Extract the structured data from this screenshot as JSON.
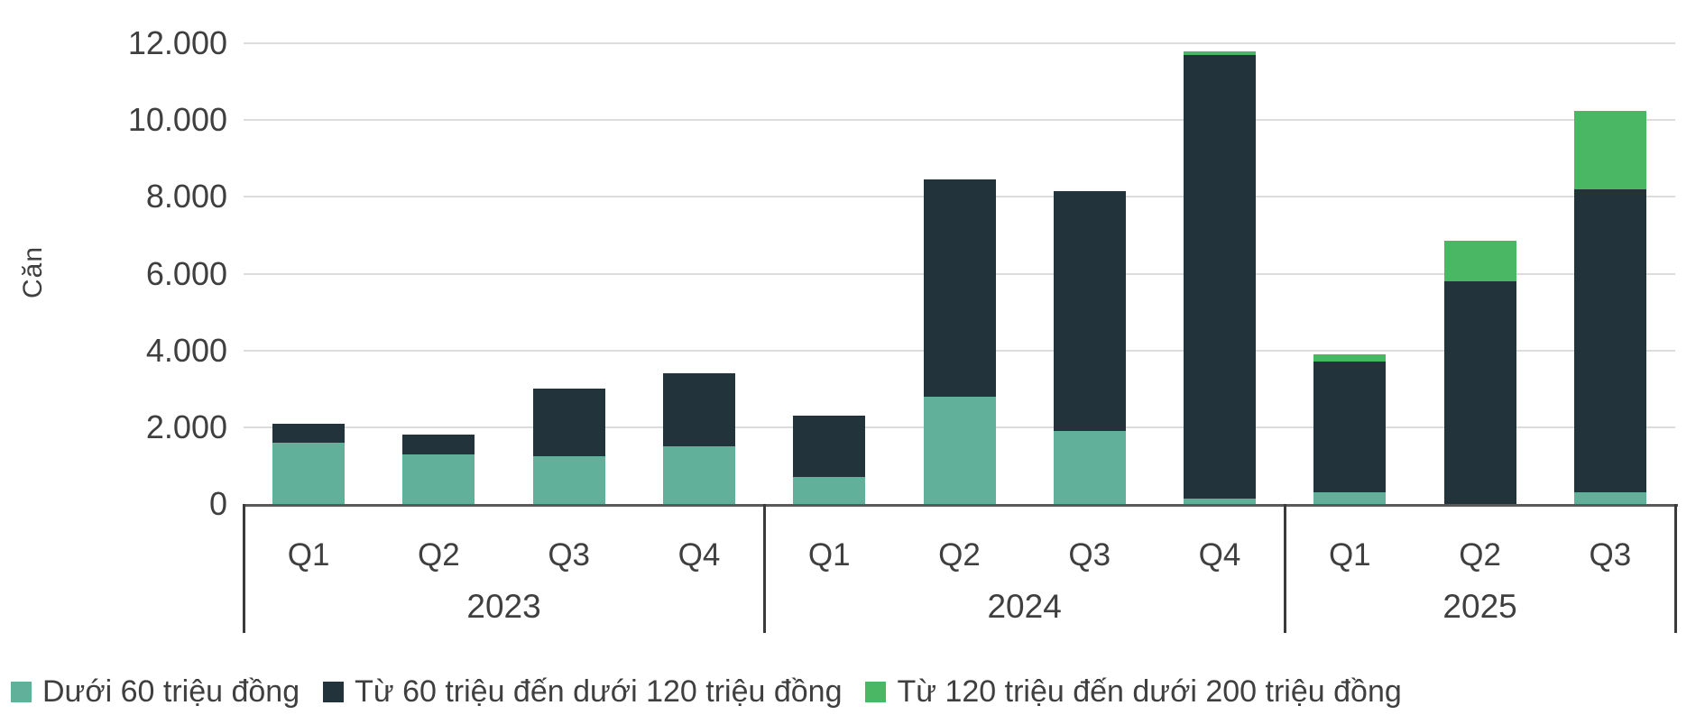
{
  "chart_data": {
    "type": "bar",
    "stacked": true,
    "title": "",
    "y_axis": {
      "title": "Căn",
      "min": 0,
      "max": 12000,
      "tick_step": 2000,
      "tick_labels": [
        "0",
        "2.000",
        "4.000",
        "6.000",
        "8.000",
        "10.000",
        "12.000"
      ]
    },
    "x_axis": {
      "groups": [
        {
          "label": "2023",
          "quarters": [
            "Q1",
            "Q2",
            "Q3",
            "Q4"
          ]
        },
        {
          "label": "2024",
          "quarters": [
            "Q1",
            "Q2",
            "Q3",
            "Q4"
          ]
        },
        {
          "label": "2025",
          "quarters": [
            "Q1",
            "Q2",
            "Q3"
          ]
        }
      ]
    },
    "series": [
      {
        "name": "Dưới 60 triệu đồng",
        "color": "#60b09a",
        "values": [
          1600,
          1300,
          1250,
          1500,
          700,
          2800,
          1900,
          150,
          300,
          0,
          300
        ]
      },
      {
        "name": "Từ 60 triệu đến dưới 120 triệu đồng",
        "color": "#23333b",
        "values": [
          500,
          500,
          1750,
          1900,
          1600,
          5650,
          6250,
          11550,
          3400,
          5800,
          7900
        ]
      },
      {
        "name": "Từ 120 triệu đến dưới 200 triệu đồng",
        "color": "#4ab764",
        "values": [
          0,
          0,
          0,
          0,
          0,
          0,
          0,
          100,
          200,
          1050,
          2050
        ]
      }
    ],
    "grid": true,
    "legend_position": "bottom"
  },
  "colors": {
    "grid_line": "#dcdcdc",
    "axis_line": "#58595b",
    "separator_line": "#3a3a3a",
    "text": "#3f3f3f",
    "background": "#ffffff"
  }
}
